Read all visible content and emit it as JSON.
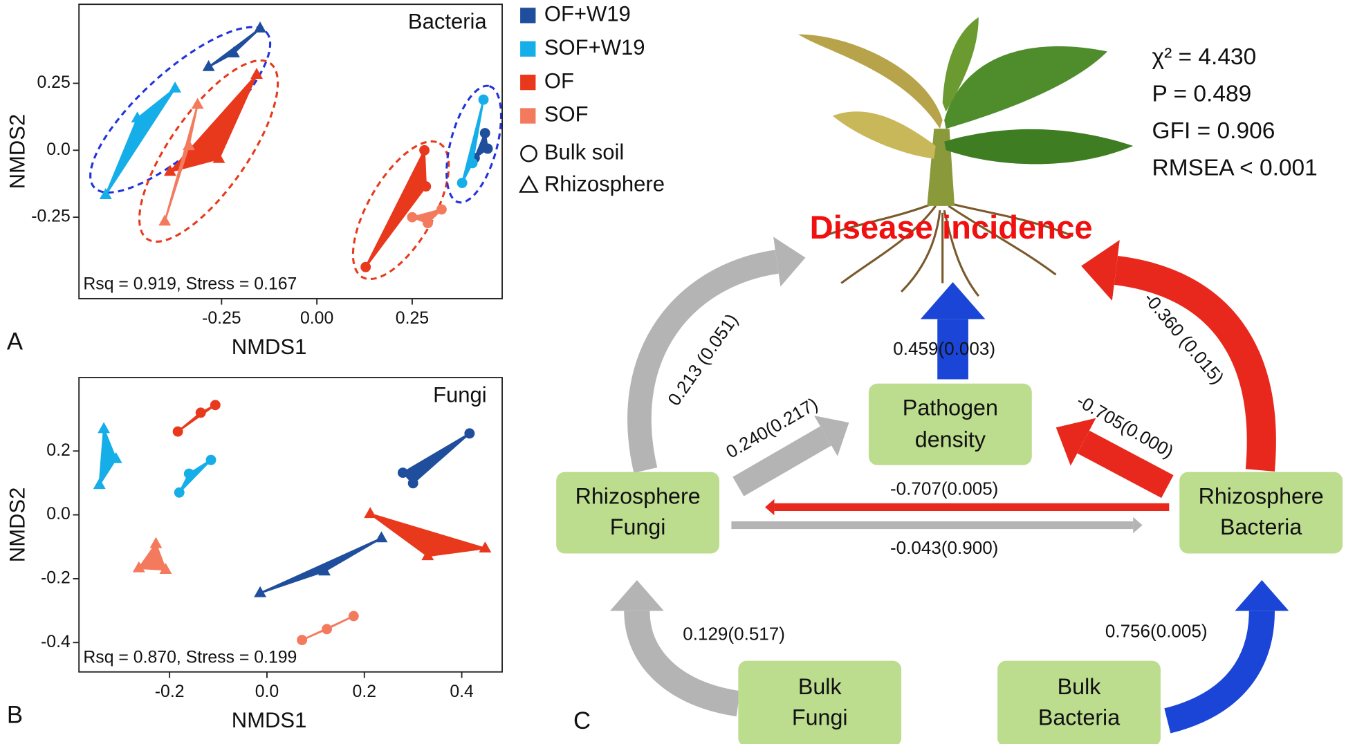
{
  "chart_data": [
    {
      "type": "scatter",
      "panel": "A",
      "title": "Bacteria",
      "xlabel": "NMDS1",
      "ylabel": "NMDS2",
      "annotation": "Rsq = 0.919, Stress = 0.167",
      "xlim": [
        -0.624,
        0.486
      ],
      "ylim": [
        -0.554,
        0.545
      ],
      "xticks": [
        -0.25,
        {
          "value": 0,
          "label": "0.00"
        },
        0.25
      ],
      "yticks": [
        -0.25,
        {
          "value": 0,
          "label": "0.0"
        },
        0.25
      ],
      "markers": {
        "bulk": "Bulk soil",
        "rhizosphere": "Rhizosphere"
      },
      "series": [
        {
          "name": "OF+W19",
          "color": "#1f4e9c",
          "bulk": {
            "x": [
              0.441,
              0.448,
              0.414
            ],
            "y": [
              0.064,
              0.006,
              -0.029
            ]
          },
          "rhizosphere": {
            "x": [
              -0.149,
              -0.284,
              -0.218
            ],
            "y": [
              0.455,
              0.311,
              0.362
            ]
          }
        },
        {
          "name": "SOF+W19",
          "color": "#16aee8",
          "bulk": {
            "x": [
              0.437,
              0.381,
              0.408
            ],
            "y": [
              0.189,
              -0.122,
              -0.048
            ]
          },
          "rhizosphere": {
            "x": [
              -0.372,
              -0.554,
              -0.471
            ],
            "y": [
              0.231,
              -0.167,
              0.119
            ]
          }
        },
        {
          "name": "OF",
          "color": "#e8391d",
          "bulk": {
            "x": [
              0.128,
              0.286,
              0.282
            ],
            "y": [
              -0.436,
              -0.135,
              0.0
            ]
          },
          "rhizosphere": {
            "x": [
              -0.158,
              -0.385,
              -0.257
            ],
            "y": [
              0.282,
              -0.08,
              -0.032
            ]
          }
        },
        {
          "name": "SOF",
          "color": "#f47a5e",
          "bulk": {
            "x": [
              0.25,
              0.291,
              0.327
            ],
            "y": [
              -0.25,
              -0.272,
              -0.221
            ]
          },
          "rhizosphere": {
            "x": [
              -0.313,
              -0.399,
              -0.336
            ],
            "y": [
              0.17,
              -0.266,
              0.016
            ]
          }
        }
      ]
    },
    {
      "type": "scatter",
      "panel": "B",
      "title": "Fungi",
      "xlabel": "NMDS1",
      "ylabel": "NMDS2",
      "annotation": "Rsq = 0.870, Stress = 0.199",
      "xlim": [
        -0.386,
        0.483
      ],
      "ylim": [
        -0.492,
        0.43
      ],
      "xticks": [
        -0.2,
        {
          "value": 0,
          "label": "0.0"
        },
        0.2,
        0.4
      ],
      "yticks": [
        -0.4,
        -0.2,
        {
          "value": 0,
          "label": "0.0"
        },
        0.2
      ],
      "series": [
        {
          "color": "#1f4e9c",
          "bulk": {
            "x": [
              0.416,
              0.279,
              0.3
            ],
            "y": [
              0.255,
              0.132,
              0.099
            ]
          },
          "rhizosphere": {
            "x": [
              -0.014,
              0.118,
              0.235
            ],
            "y": [
              -0.245,
              -0.177,
              -0.073
            ]
          }
        },
        {
          "color": "#16aee8",
          "bulk": {
            "x": [
              -0.18,
              -0.16,
              -0.115
            ],
            "y": [
              0.07,
              0.129,
              0.172
            ]
          },
          "rhizosphere": {
            "x": [
              -0.335,
              -0.344,
              -0.31
            ],
            "y": [
              0.269,
              0.094,
              0.175
            ]
          }
        },
        {
          "color": "#e8391d",
          "bulk": {
            "x": [
              -0.183,
              -0.136,
              -0.106
            ],
            "y": [
              0.261,
              0.32,
              0.344
            ]
          },
          "rhizosphere": {
            "x": [
              0.212,
              0.448,
              0.33
            ],
            "y": [
              0.003,
              -0.105,
              -0.129
            ]
          }
        },
        {
          "color": "#f47a5e",
          "bulk": {
            "x": [
              0.072,
              0.123,
              0.178
            ],
            "y": [
              -0.392,
              -0.358,
              -0.317
            ]
          },
          "rhizosphere": {
            "x": [
              -0.228,
              -0.263,
              -0.208
            ],
            "y": [
              -0.091,
              -0.167,
              -0.172
            ]
          }
        }
      ]
    }
  ],
  "diagram": {
    "panel": "C",
    "title": "Disease incidence",
    "stats": [
      "χ² = 4.430",
      "P = 0.489",
      "GFI = 0.906",
      "RMSEA < 0.001"
    ],
    "nodes": [
      {
        "lines": [
          "Pathogen",
          "density"
        ]
      },
      {
        "lines": [
          "Rhizosphere",
          "Fungi"
        ]
      },
      {
        "lines": [
          "Rhizosphere",
          "Bacteria"
        ]
      },
      {
        "lines": [
          "Bulk",
          "Fungi"
        ]
      },
      {
        "lines": [
          "Bulk",
          "Bacteria"
        ]
      }
    ],
    "edges": [
      "0.459(0.003)",
      "0.213 (0.051)",
      "-0.360 (0.015)",
      "0.240(0.217)",
      "-0.705(0.000)",
      "-0.707(0.005)",
      "-0.043(0.900)",
      "0.129(0.517)",
      "0.756(0.005)"
    ]
  }
}
